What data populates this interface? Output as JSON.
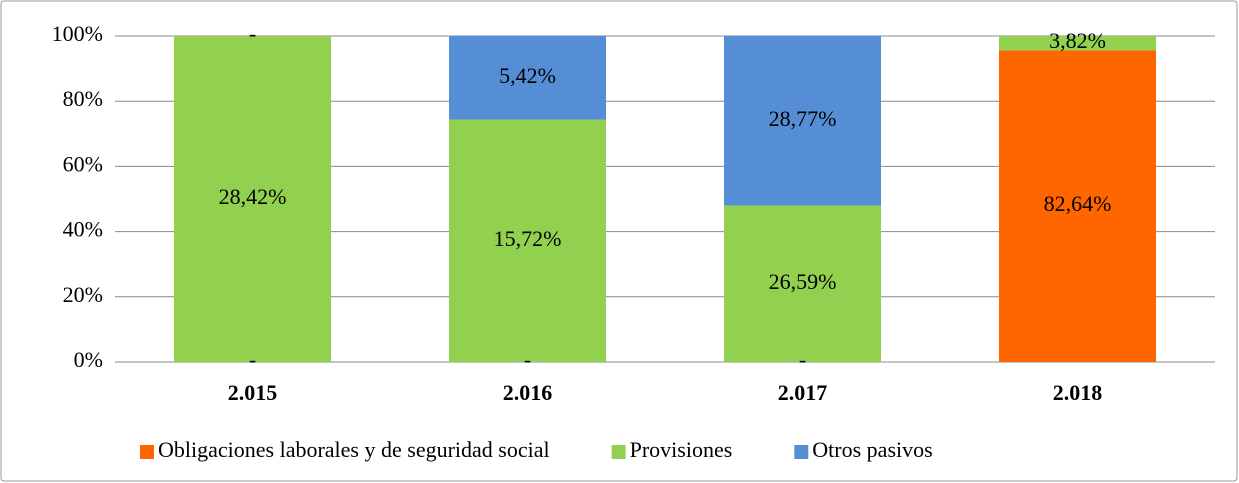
{
  "chart_data": {
    "type": "bar",
    "stacking": "percent",
    "categories": [
      "2.015",
      "2.016",
      "2.017",
      "2.018"
    ],
    "series": [
      {
        "name": "Obligaciones laborales y de seguridad social",
        "color": "#ff6600",
        "values": [
          0,
          0,
          0,
          82.64
        ],
        "value_labels": [
          "-",
          "-",
          "-",
          "82,64%"
        ]
      },
      {
        "name": "Provisiones",
        "color": "#92d050",
        "values": [
          28.42,
          15.72,
          26.59,
          3.82
        ],
        "value_labels": [
          "28,42%",
          "15,72%",
          "26,59%",
          "3,82%"
        ]
      },
      {
        "name": "Otros pasivos",
        "color": "#558ed5",
        "values": [
          0,
          5.42,
          28.77,
          null
        ],
        "value_labels": [
          "-",
          "5,42%",
          "28,77%",
          null
        ]
      }
    ],
    "ylim": [
      0,
      100
    ],
    "yticks": [
      {
        "value": 0,
        "label": "0%"
      },
      {
        "value": 20,
        "label": "20%"
      },
      {
        "value": 40,
        "label": "40%"
      },
      {
        "value": 60,
        "label": "60%"
      },
      {
        "value": 80,
        "label": "80%"
      },
      {
        "value": 100,
        "label": "100%"
      }
    ],
    "grid": true,
    "legend": "bottom"
  }
}
